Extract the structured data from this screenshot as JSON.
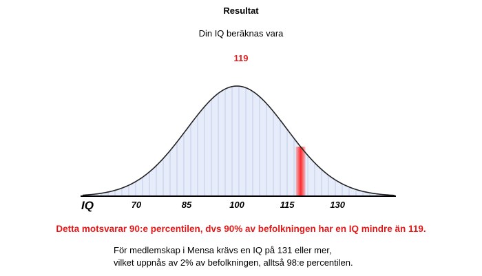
{
  "result": {
    "title": "Resultat",
    "subtitle": "Din IQ beräknas vara",
    "iq_score": "119"
  },
  "chart_data": {
    "type": "area",
    "distribution": "normal",
    "mean": 100,
    "sd": 15,
    "xlabel": "IQ",
    "x_ticks": [
      "70",
      "85",
      "100",
      "115",
      "130"
    ],
    "xlim": [
      54,
      147
    ],
    "marker_value": 119,
    "marker_color": "#ff2a2a",
    "fill_color": "#e6ecfa",
    "line_color": "#c9d3ea"
  },
  "percentile_text": "Detta motsvarar 90:e percentilen, dvs 90% av befolkningen har en IQ mindre än 119.",
  "mensa_info": {
    "line1": "För medlemskap i Mensa krävs en IQ på 131 eller mer,",
    "line2": "vilket uppnås av 2% av befolkningen, alltså 98:e percentilen."
  }
}
